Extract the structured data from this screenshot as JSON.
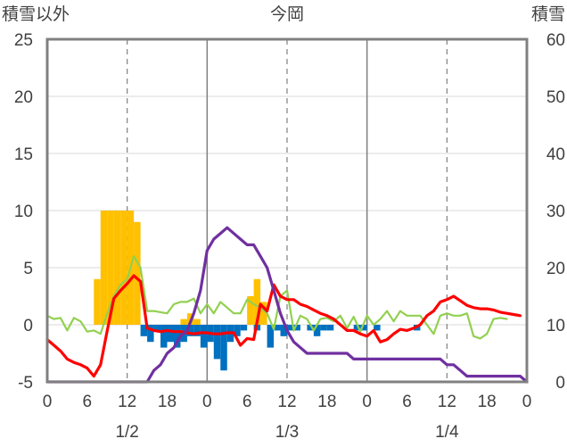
{
  "chart_data": {
    "type": "bar+line",
    "title": "今岡",
    "y_left_label": "積雪以外",
    "y_right_label": "積雪",
    "y_left_range": [
      -5,
      25
    ],
    "y_left_ticks": [
      "-5",
      "0",
      "5",
      "10",
      "15",
      "20",
      "25"
    ],
    "y_right_range": [
      0,
      60
    ],
    "y_right_ticks": [
      "0",
      "10",
      "20",
      "30",
      "40",
      "50",
      "60"
    ],
    "x_range_hours": [
      0,
      72
    ],
    "x_hour_ticks": [
      "0",
      "6",
      "12",
      "18",
      "0",
      "6",
      "12",
      "18",
      "0",
      "6",
      "12",
      "18",
      "0"
    ],
    "date_labels": [
      "1/2",
      "1/3",
      "1/4"
    ],
    "grid": "dashed verticals at 12:00, solid at midnight",
    "colors": {
      "precip_orange": "#ffc000",
      "negative_blue": "#0070c0",
      "green_line": "#92d050",
      "red_line": "#ff0000",
      "purple_snow": "#7030a0",
      "frame": "#808080"
    },
    "bars_orange": {
      "x_hours": [
        7.5,
        8.5,
        9.5,
        10.5,
        11.5,
        12.5,
        13.5,
        20.5,
        21.5,
        22.5,
        30.5,
        31.5,
        32.5
      ],
      "values": [
        4.0,
        10.0,
        10.0,
        10.0,
        10.0,
        10.0,
        9.0,
        0.5,
        1.0,
        0.5,
        2.5,
        4.0,
        2.0
      ]
    },
    "bars_blue": {
      "x_hours": [
        14.5,
        15.5,
        16.5,
        17.5,
        18.5,
        19.5,
        20.5,
        21.5,
        22.5,
        23.5,
        24.5,
        25.5,
        26.5,
        27.5,
        28.5,
        29.5,
        31.5,
        33.5,
        34.5,
        35.5,
        36.5,
        37.5,
        39.5,
        40.5,
        41.5,
        42.5,
        46.5,
        47.5,
        49.5,
        55.5
      ],
      "values": [
        -1.0,
        -1.5,
        -0.5,
        -2.0,
        -1.5,
        -2.0,
        -1.5,
        -1.0,
        -1.0,
        -2.0,
        -1.5,
        -3.0,
        -4.0,
        -1.5,
        -1.0,
        -0.5,
        -0.5,
        -2.0,
        -0.5,
        -1.0,
        -0.5,
        -0.5,
        -0.5,
        -1.0,
        -0.5,
        -0.5,
        -0.5,
        -0.5,
        -0.5,
        -0.5
      ]
    },
    "series": [
      {
        "color": "green",
        "axis": "left",
        "x": [
          0,
          1,
          2,
          3,
          4,
          5,
          6,
          7,
          8,
          9,
          10,
          11,
          12,
          13,
          14,
          15,
          16,
          17,
          18,
          19,
          20,
          21,
          22,
          23,
          24,
          25,
          26,
          27,
          28,
          29,
          30,
          31,
          32,
          33,
          34,
          35,
          36,
          37,
          38,
          39,
          40,
          41,
          42,
          43,
          44,
          45,
          46,
          47,
          48,
          49,
          50,
          51,
          52,
          53,
          54,
          55,
          56,
          57,
          58,
          59,
          60,
          61,
          62,
          63,
          64,
          65,
          66,
          67,
          68,
          69
        ],
        "y": [
          0.8,
          0.5,
          0.6,
          -0.5,
          0.6,
          0.3,
          -0.6,
          -0.5,
          -0.8,
          1.0,
          2.5,
          3.5,
          4.0,
          6.0,
          5.0,
          1.2,
          1.2,
          1.1,
          1.0,
          1.8,
          2.0,
          2.0,
          2.3,
          1.0,
          1.8,
          1.0,
          2.0,
          1.5,
          1.0,
          1.0,
          2.2,
          1.8,
          1.5,
          1.0,
          -0.4,
          2.5,
          3.0,
          -0.5,
          0.8,
          0.5,
          -0.5,
          0.5,
          0.6,
          0.3,
          0.8,
          -0.3,
          0.7,
          -0.6,
          0.8,
          0.0,
          0.5,
          1.2,
          0.3,
          1.2,
          0.8,
          0.8,
          0.8,
          0.0,
          -0.8,
          0.8,
          1.0,
          0.8,
          0.8,
          1.0,
          -1.0,
          -1.2,
          -0.8,
          0.5,
          0.6,
          0.5
        ]
      },
      {
        "color": "red",
        "axis": "left",
        "x": [
          0,
          1,
          2,
          3,
          4,
          5,
          6,
          7,
          8,
          9,
          10,
          11,
          12,
          13,
          14,
          15,
          16,
          17,
          18,
          19,
          20,
          21,
          22,
          23,
          24,
          25,
          26,
          27,
          28,
          29,
          30,
          31,
          32,
          33,
          34,
          35,
          36,
          37,
          38,
          39,
          40,
          41,
          42,
          43,
          44,
          45,
          46,
          47,
          48,
          49,
          50,
          51,
          52,
          53,
          54,
          55,
          56,
          57,
          58,
          59,
          60,
          61,
          62,
          63,
          64,
          65,
          66,
          67,
          68,
          69,
          70,
          71
        ],
        "y": [
          -1.3,
          -1.8,
          -2.3,
          -3.0,
          -3.3,
          -3.5,
          -3.8,
          -4.5,
          -3.5,
          -0.5,
          2.3,
          3.0,
          3.6,
          4.3,
          3.8,
          -0.3,
          -0.5,
          -0.6,
          -0.5,
          -0.6,
          -0.6,
          -0.7,
          -0.8,
          -0.7,
          -0.7,
          -0.8,
          -0.8,
          -0.7,
          -0.7,
          -1.8,
          -1.2,
          -1.3,
          1.8,
          1.2,
          3.5,
          2.5,
          2.2,
          2.2,
          1.8,
          1.6,
          1.3,
          1.0,
          0.8,
          0.5,
          0.0,
          -0.5,
          -0.5,
          -0.8,
          -1.0,
          -0.5,
          -1.5,
          -1.3,
          -0.8,
          -0.4,
          -0.5,
          -0.3,
          0.0,
          0.8,
          1.2,
          2.0,
          2.2,
          2.5,
          2.1,
          1.7,
          1.5,
          1.4,
          1.4,
          1.3,
          1.1,
          1.0,
          0.9,
          0.8
        ]
      },
      {
        "color": "purple",
        "axis": "right",
        "x": [
          0,
          15,
          16,
          17,
          18,
          19,
          20,
          21,
          22,
          23,
          24,
          25,
          26,
          27,
          28,
          29,
          30,
          31,
          32,
          33,
          34,
          35,
          36,
          37,
          38,
          39,
          40,
          41,
          42,
          43,
          44,
          45,
          46,
          47,
          48,
          49,
          50,
          51,
          52,
          53,
          54,
          55,
          56,
          57,
          58,
          59,
          60,
          61,
          62,
          63,
          64,
          65,
          66,
          67,
          68,
          69,
          70,
          71,
          72
        ],
        "y": [
          0,
          0,
          2,
          3,
          5,
          6,
          8,
          9,
          12,
          16,
          23,
          25,
          26,
          27,
          26,
          25,
          24,
          24,
          22,
          20,
          16,
          12,
          9,
          7,
          6,
          5,
          5,
          5,
          5,
          5,
          5,
          5,
          4,
          4,
          4,
          4,
          4,
          4,
          4,
          4,
          4,
          4,
          4,
          4,
          4,
          4,
          3,
          3,
          2,
          1,
          1,
          1,
          1,
          1,
          1,
          1,
          1,
          1,
          0
        ]
      }
    ]
  }
}
